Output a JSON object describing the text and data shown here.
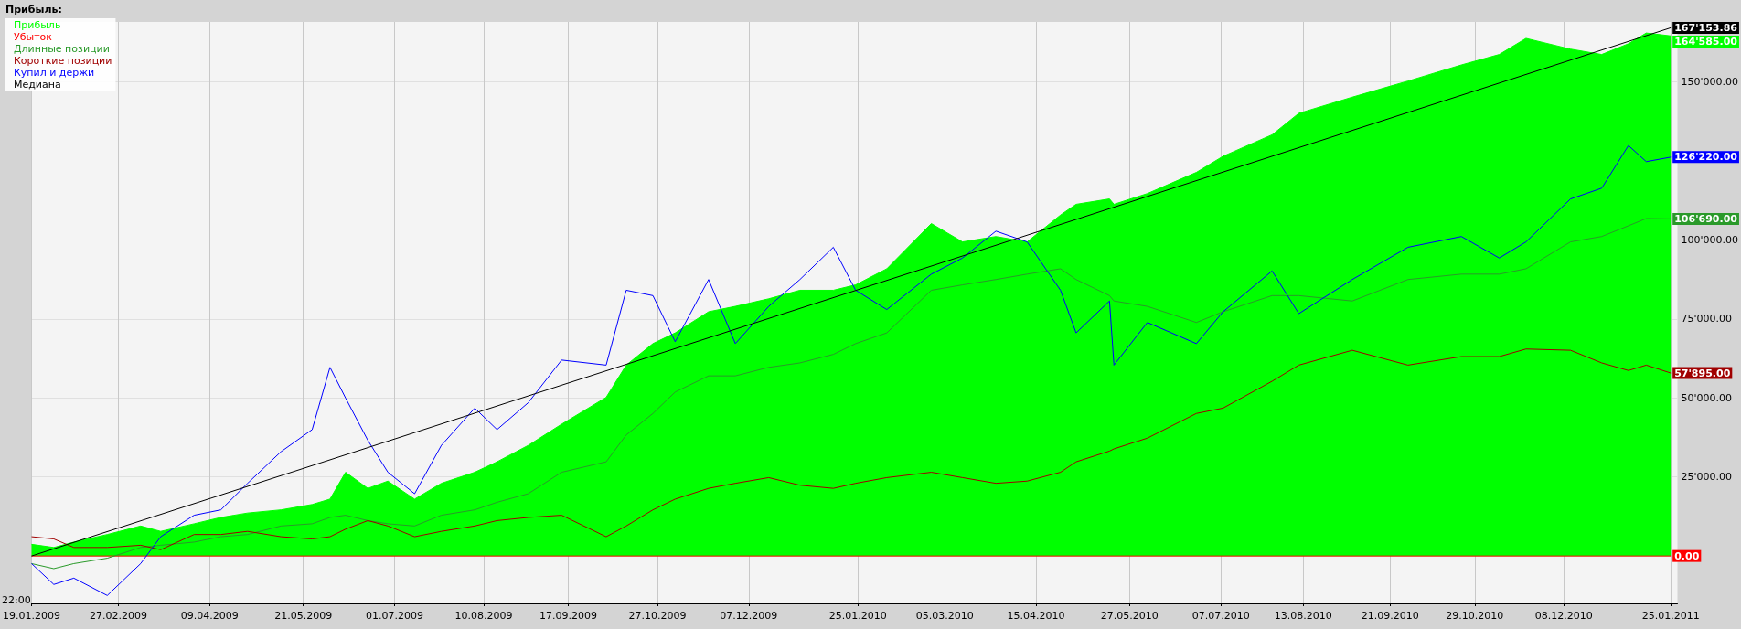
{
  "chart_data": {
    "type": "line",
    "legend_title": "Прибыль:",
    "legend": "top left",
    "grid": true,
    "annotations": [
      "22:00"
    ],
    "x": [
      "2009-01-19",
      "2009-01-29",
      "2009-02-07",
      "2009-02-22",
      "2009-03-09",
      "2009-03-18",
      "2009-04-02",
      "2009-04-14",
      "2009-04-26",
      "2009-05-11",
      "2009-05-25",
      "2009-06-02",
      "2009-06-09",
      "2009-06-19",
      "2009-06-28",
      "2009-07-10",
      "2009-07-22",
      "2009-08-06",
      "2009-08-16",
      "2009-08-30",
      "2009-09-14",
      "2009-10-04",
      "2009-10-13",
      "2009-10-25",
      "2009-11-04",
      "2009-11-19",
      "2009-12-01",
      "2009-12-16",
      "2009-12-30",
      "2010-01-14",
      "2010-01-24",
      "2010-02-07",
      "2010-02-27",
      "2010-03-13",
      "2010-03-28",
      "2010-04-11",
      "2010-04-26",
      "2010-05-03",
      "2010-05-18",
      "2010-05-20",
      "2010-06-04",
      "2010-06-26",
      "2010-07-08",
      "2010-07-30",
      "2010-08-11",
      "2010-09-04",
      "2010-09-29",
      "2010-10-23",
      "2010-11-09",
      "2010-11-21",
      "2010-12-11",
      "2010-12-25",
      "2011-01-06",
      "2011-01-14",
      "2011-01-25"
    ],
    "xlim": [
      "2009-01-19",
      "2011-01-28"
    ],
    "xticks": [
      {
        "value": "2009-01-19",
        "label": "19.01.2009"
      },
      {
        "value": "2009-02-27",
        "label": "27.02.2009"
      },
      {
        "value": "2009-04-09",
        "label": "09.04.2009"
      },
      {
        "value": "2009-05-21",
        "label": "21.05.2009"
      },
      {
        "value": "2009-07-01",
        "label": "01.07.2009"
      },
      {
        "value": "2009-08-10",
        "label": "10.08.2009"
      },
      {
        "value": "2009-09-17",
        "label": "17.09.2009"
      },
      {
        "value": "2009-10-27",
        "label": "27.10.2009"
      },
      {
        "value": "2009-12-07",
        "label": "07.12.2009"
      },
      {
        "value": "2010-01-25",
        "label": "25.01.2010"
      },
      {
        "value": "2010-03-05",
        "label": "05.03.2010"
      },
      {
        "value": "2010-04-15",
        "label": "15.04.2010"
      },
      {
        "value": "2010-05-27",
        "label": "27.05.2010"
      },
      {
        "value": "2010-07-07",
        "label": "07.07.2010"
      },
      {
        "value": "2010-08-13",
        "label": "13.08.2010"
      },
      {
        "value": "2010-09-21",
        "label": "21.09.2010"
      },
      {
        "value": "2010-10-29",
        "label": "29.10.2010"
      },
      {
        "value": "2010-12-08",
        "label": "08.12.2010"
      },
      {
        "value": "2011-01-25",
        "label": "25.01.2011"
      }
    ],
    "ylim": [
      -15000,
      169000
    ],
    "yticks": [
      {
        "value": 25000,
        "label": "25'000.00"
      },
      {
        "value": 50000,
        "label": "50'000.00"
      },
      {
        "value": 75000,
        "label": "75'000.00"
      },
      {
        "value": 100000,
        "label": "100'000.00"
      },
      {
        "value": 150000,
        "label": "150'000.00"
      }
    ],
    "series": [
      {
        "name": "Прибыль",
        "type": "area",
        "color": "#00ff00",
        "values": [
          3700,
          2700,
          4400,
          6800,
          9500,
          7800,
          10200,
          12200,
          13600,
          14600,
          16300,
          18000,
          26500,
          21400,
          23700,
          18000,
          23000,
          26500,
          29800,
          35000,
          41700,
          50200,
          60400,
          67200,
          70600,
          77300,
          79000,
          81400,
          84100,
          84100,
          85800,
          90900,
          105200,
          99400,
          101100,
          99400,
          107900,
          111300,
          113000,
          111300,
          114700,
          121400,
          126500,
          133300,
          140100,
          145200,
          150300,
          155400,
          158700,
          163800,
          160400,
          158700,
          162100,
          165500,
          164585
        ],
        "value_labels": [
          null,
          null,
          null,
          null,
          null,
          null,
          null,
          null,
          null,
          null,
          null,
          null,
          null,
          null,
          null,
          null,
          null,
          null,
          null,
          null,
          null,
          null,
          null,
          null,
          null,
          null,
          null,
          null,
          null,
          null,
          null,
          null,
          null,
          null,
          null,
          null,
          null,
          null,
          null,
          null,
          null,
          null,
          null,
          null,
          null,
          null,
          null,
          null,
          null,
          null,
          null,
          null,
          null,
          null,
          "164'585.00"
        ]
      },
      {
        "name": "Убыток",
        "color": "#ff0000",
        "x": [
          "2009-01-19",
          "2011-01-25"
        ],
        "values": [
          0,
          0
        ],
        "value_labels": [
          null,
          "0.00"
        ]
      },
      {
        "name": "Длинные позиции",
        "color": "#2a9a2a",
        "values": [
          -2400,
          -4000,
          -2400,
          -700,
          2700,
          3400,
          4400,
          6100,
          6800,
          9500,
          10200,
          12200,
          12900,
          11200,
          10200,
          9500,
          12900,
          14600,
          17000,
          19700,
          26500,
          29800,
          38300,
          45100,
          51900,
          57000,
          57000,
          59700,
          61100,
          63800,
          67200,
          70600,
          84100,
          85800,
          87500,
          89200,
          90900,
          87500,
          82400,
          80700,
          79000,
          73900,
          77300,
          82400,
          82400,
          80700,
          87500,
          89200,
          89200,
          90900,
          99400,
          101100,
          104500,
          106800,
          106690
        ],
        "value_labels": [
          null,
          null,
          null,
          null,
          null,
          null,
          null,
          null,
          null,
          null,
          null,
          null,
          null,
          null,
          null,
          null,
          null,
          null,
          null,
          null,
          null,
          null,
          null,
          null,
          null,
          null,
          null,
          null,
          null,
          null,
          null,
          null,
          null,
          null,
          null,
          null,
          null,
          null,
          null,
          null,
          null,
          null,
          null,
          null,
          null,
          null,
          null,
          null,
          null,
          null,
          null,
          null,
          null,
          null,
          "106'690.00"
        ]
      },
      {
        "name": "Короткие позиции",
        "color": "#a00000",
        "values": [
          6100,
          5400,
          2700,
          2700,
          3400,
          2000,
          6800,
          6800,
          7800,
          6100,
          5400,
          6100,
          8500,
          11200,
          9500,
          6100,
          7800,
          9500,
          11200,
          12200,
          12900,
          6100,
          9500,
          14600,
          18000,
          21400,
          23000,
          24800,
          22400,
          21400,
          23000,
          24800,
          26500,
          24800,
          23000,
          23700,
          26500,
          29800,
          33200,
          33900,
          37300,
          45100,
          46800,
          55300,
          60400,
          65100,
          60400,
          63100,
          63100,
          65500,
          65100,
          61100,
          58700,
          60400,
          57895
        ],
        "value_labels": [
          null,
          null,
          null,
          null,
          null,
          null,
          null,
          null,
          null,
          null,
          null,
          null,
          null,
          null,
          null,
          null,
          null,
          null,
          null,
          null,
          null,
          null,
          null,
          null,
          null,
          null,
          null,
          null,
          null,
          null,
          null,
          null,
          null,
          null,
          null,
          null,
          null,
          null,
          null,
          null,
          null,
          null,
          null,
          null,
          null,
          null,
          null,
          null,
          null,
          null,
          null,
          null,
          null,
          null,
          "57'895.00"
        ]
      },
      {
        "name": "Купил и держи",
        "color": "#0000ff",
        "values": [
          -2400,
          -9000,
          -7000,
          -12500,
          -2400,
          6100,
          12900,
          14600,
          23000,
          33000,
          40000,
          59700,
          50000,
          36600,
          26500,
          19700,
          35000,
          46800,
          40000,
          48500,
          62000,
          60400,
          84100,
          82400,
          67800,
          87500,
          67200,
          79000,
          87500,
          97700,
          84100,
          78000,
          89200,
          94300,
          102800,
          99400,
          84100,
          70600,
          80700,
          60400,
          73900,
          67200,
          77300,
          90200,
          76700,
          87500,
          97700,
          101100,
          94300,
          99400,
          113000,
          116400,
          129900,
          124800,
          126220
        ],
        "value_labels": [
          null,
          null,
          null,
          null,
          null,
          null,
          null,
          null,
          null,
          null,
          null,
          null,
          null,
          null,
          null,
          null,
          null,
          null,
          null,
          null,
          null,
          null,
          null,
          null,
          null,
          null,
          null,
          null,
          null,
          null,
          null,
          null,
          null,
          null,
          null,
          null,
          null,
          null,
          null,
          null,
          null,
          null,
          null,
          null,
          null,
          null,
          null,
          null,
          null,
          null,
          null,
          null,
          null,
          null,
          "126'220.00"
        ]
      },
      {
        "name": "Медиана",
        "color": "#000000",
        "x": [
          "2009-01-19",
          "2011-01-25"
        ],
        "values": [
          0,
          167153.86
        ],
        "value_labels": [
          null,
          "167'153.86"
        ]
      }
    ]
  }
}
